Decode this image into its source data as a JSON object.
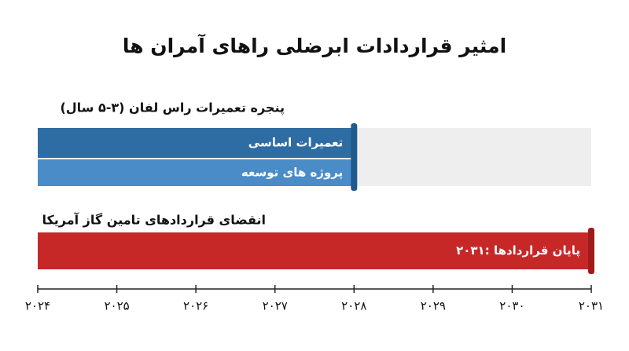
{
  "chart_data": {
    "type": "timeline",
    "title": "امثیر قراردادات ابرضلی راهای آمران ها",
    "xlim": [
      2024,
      2031
    ],
    "xticks": [
      {
        "value": 2024,
        "label": "۲۰۲۴"
      },
      {
        "value": 2025,
        "label": "۲۰۲۵"
      },
      {
        "value": 2026,
        "label": "۲۰۲۶"
      },
      {
        "value": 2027,
        "label": "۲۰۲۷"
      },
      {
        "value": 2028,
        "label": "۲۰۲۸"
      },
      {
        "value": 2029,
        "label": "۲۰۲۹"
      },
      {
        "value": 2030,
        "label": "۲۰۳۰"
      },
      {
        "value": 2031,
        "label": "۲۰۳۱"
      }
    ],
    "track_color": "#eeeeee",
    "sections": [
      {
        "title": "پنجره تعمیرات راس لفان (۳-۵ سال)",
        "marker_color": "#1f5a8f",
        "bars": [
          {
            "label": "تعمیرات اساسی",
            "start": 2024,
            "end": 2028,
            "color": "#2e6da4"
          },
          {
            "label": "پروژه های توسعه",
            "start": 2024,
            "end": 2028,
            "color": "#4a8cc7"
          }
        ]
      },
      {
        "title": "انقضای قراردادهای تامین گاز آمریکا",
        "marker_color": "#9e1b1b",
        "bars": [
          {
            "label": "۲۰۳۱: پایان قراردادها",
            "start": 2024,
            "end": 2031,
            "color": "#c62828"
          }
        ]
      }
    ]
  }
}
